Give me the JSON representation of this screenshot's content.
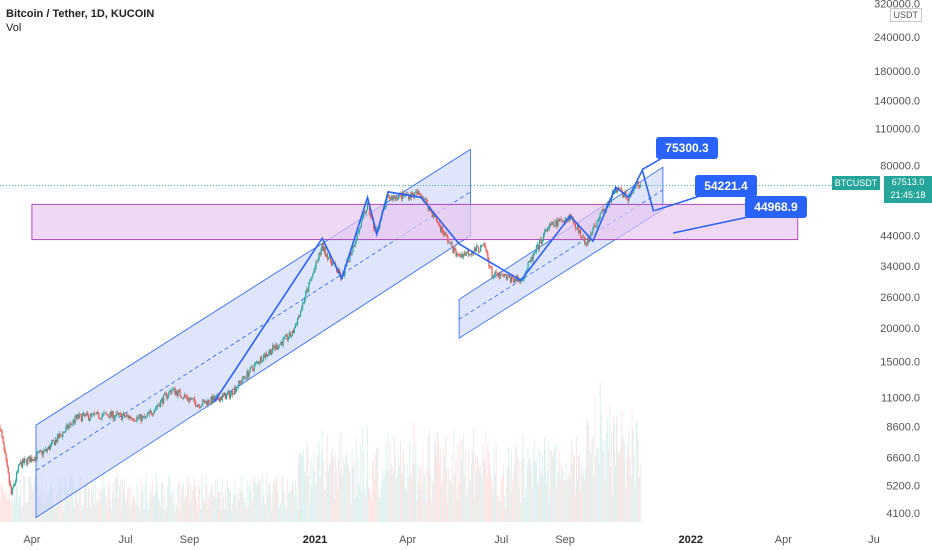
{
  "header": {
    "title": "Bitcoin / Tether, 1D, KUCOIN",
    "vol_label": "Vol"
  },
  "price_axis": {
    "unit_badge": "USDT",
    "labels": [
      "320000.0",
      "240000.0",
      "180000.0",
      "140000.0",
      "110000.0",
      "80000.0",
      "44000.0",
      "34000.0",
      "26000.0",
      "20000.0",
      "15000.0",
      "11000.0",
      "8600.0",
      "6600.0",
      "5200.0",
      "4100.0"
    ]
  },
  "time_axis": {
    "labels": [
      {
        "text": "Apr",
        "bold": false
      },
      {
        "text": "Jul",
        "bold": false
      },
      {
        "text": "Sep",
        "bold": false
      },
      {
        "text": "2021",
        "bold": true
      },
      {
        "text": "Apr",
        "bold": false
      },
      {
        "text": "Jul",
        "bold": false
      },
      {
        "text": "Sep",
        "bold": false
      },
      {
        "text": "2022",
        "bold": true
      },
      {
        "text": "Apr",
        "bold": false
      },
      {
        "text": "Ju",
        "bold": false
      }
    ]
  },
  "last_price": {
    "symbol": "BTCUSDT",
    "price": "67513.0",
    "countdown": "21:45:18"
  },
  "colors": {
    "up": "#26a69a",
    "down": "#ef5350",
    "drawing": "#2962ff",
    "channel_fill": "#c8d4fb",
    "zone_fill": "#e8c8f0",
    "zone_border": "#9c27b0",
    "callout": "#2962ff",
    "last_price": "#26a69a"
  },
  "chart_data": {
    "type": "candlestick",
    "symbol": "Bitcoin / Tether",
    "interval": "1D",
    "exchange": "KUCOIN",
    "scale": "log",
    "y_range": [
      3800,
      330000
    ],
    "x_range": [
      "2020-03-01",
      "2022-06-30"
    ],
    "grid": false,
    "legend": "top-left",
    "close_path": [
      {
        "date": "2020-03-01",
        "price": 8600
      },
      {
        "date": "2020-03-12",
        "price": 4800
      },
      {
        "date": "2020-03-20",
        "price": 6200
      },
      {
        "date": "2020-04-15",
        "price": 7000
      },
      {
        "date": "2020-05-15",
        "price": 9300
      },
      {
        "date": "2020-06-15",
        "price": 9500
      },
      {
        "date": "2020-07-20",
        "price": 9200
      },
      {
        "date": "2020-08-15",
        "price": 11800
      },
      {
        "date": "2020-09-10",
        "price": 10400
      },
      {
        "date": "2020-10-10",
        "price": 11300
      },
      {
        "date": "2020-11-10",
        "price": 15500
      },
      {
        "date": "2020-12-10",
        "price": 19000
      },
      {
        "date": "2021-01-08",
        "price": 40000
      },
      {
        "date": "2021-01-27",
        "price": 30500
      },
      {
        "date": "2021-02-21",
        "price": 57000
      },
      {
        "date": "2021-03-01",
        "price": 45000
      },
      {
        "date": "2021-03-13",
        "price": 61000
      },
      {
        "date": "2021-04-14",
        "price": 63000
      },
      {
        "date": "2021-05-19",
        "price": 37000
      },
      {
        "date": "2021-06-15",
        "price": 40000
      },
      {
        "date": "2021-06-22",
        "price": 31500
      },
      {
        "date": "2021-07-20",
        "price": 30000
      },
      {
        "date": "2021-08-15",
        "price": 47000
      },
      {
        "date": "2021-09-06",
        "price": 52000
      },
      {
        "date": "2021-09-21",
        "price": 41000
      },
      {
        "date": "2021-10-20",
        "price": 66000
      },
      {
        "date": "2021-11-01",
        "price": 61000
      },
      {
        "date": "2021-11-10",
        "price": 68000
      },
      {
        "date": "2021-11-13",
        "price": 67513
      }
    ],
    "last_price": 67513.0,
    "horizontal_zone": {
      "from": "2020-04-01",
      "to": "2022-04-15",
      "low": 42500,
      "high": 57500
    },
    "annotations": [
      {
        "text": "75300.3",
        "type": "target"
      },
      {
        "text": "54221.4",
        "type": "target"
      },
      {
        "text": "44968.9",
        "type": "target"
      }
    ]
  }
}
